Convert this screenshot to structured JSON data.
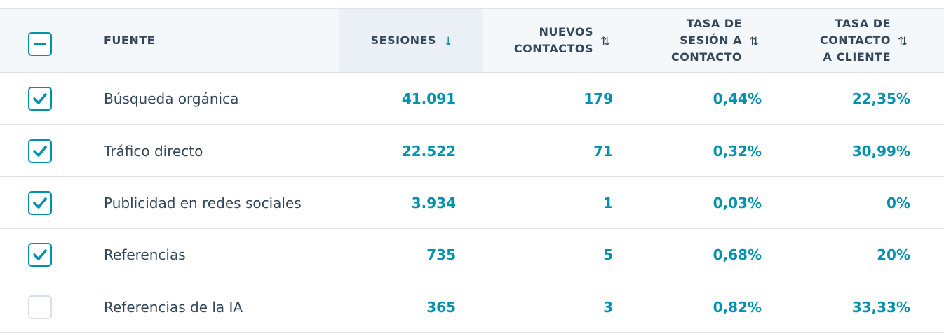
{
  "table": {
    "headers": [
      "FUENTE",
      "SESIONES",
      "NUEVOS\nCONTACTOS",
      "TASA DE\nSESIÓN A\nCONTACTO",
      "TASA DE\nCONTACTO\nA CLIENTE"
    ],
    "rows": [
      {
        "checked": true,
        "cells": [
          "Búsqueda orgánica",
          "41.091",
          "179",
          "0,44%",
          "22,35%"
        ]
      },
      {
        "checked": true,
        "cells": [
          "Tráfico directo",
          "22.522",
          "71",
          "0,32%",
          "30,99%"
        ]
      },
      {
        "checked": true,
        "cells": [
          "Publicidad en redes sociales",
          "3.934",
          "1",
          "0,03%",
          "0%"
        ]
      },
      {
        "checked": true,
        "cells": [
          "Referencias",
          "735",
          "5",
          "0,68%",
          "20%"
        ]
      },
      {
        "checked": false,
        "cells": [
          "Referencias de la IA",
          "365",
          "3",
          "0,82%",
          "33,33%"
        ]
      }
    ]
  }
}
